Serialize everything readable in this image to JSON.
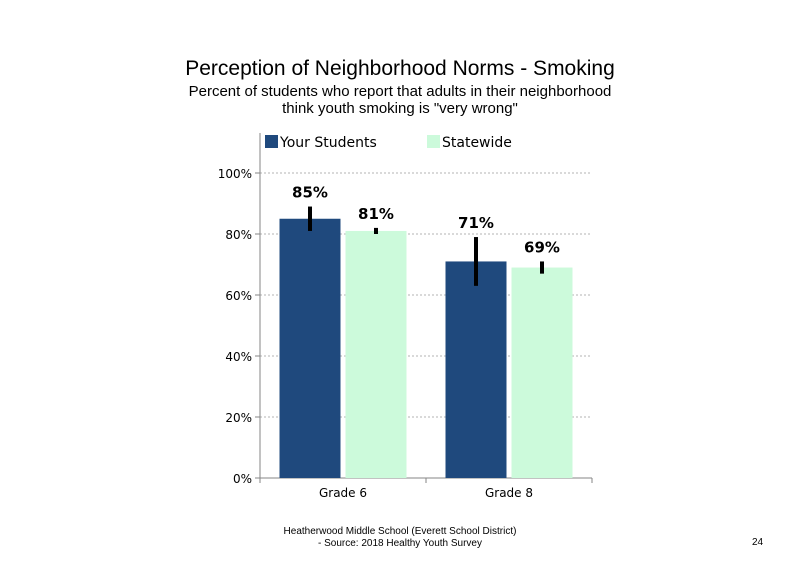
{
  "chart_data": {
    "type": "bar",
    "title": "Perception of Neighborhood Norms - Smoking",
    "subtitle_lines": [
      "Percent of students who report that adults in their neighborhood",
      "think youth smoking is \"very wrong\""
    ],
    "categories": [
      "Grade 6",
      "Grade 8"
    ],
    "series": [
      {
        "name": "Your Students",
        "values": [
          85,
          71
        ],
        "labels": [
          "85%",
          "71%"
        ],
        "error_low": [
          81,
          63
        ],
        "error_high": [
          89,
          79
        ],
        "color": "#1f497d"
      },
      {
        "name": "Statewide",
        "values": [
          81,
          69
        ],
        "labels": [
          "81%",
          "69%"
        ],
        "error_low": [
          80,
          67
        ],
        "error_high": [
          82,
          71
        ],
        "color": "#ccfadb"
      }
    ],
    "yticks": [
      0,
      20,
      40,
      60,
      80,
      100
    ],
    "ytick_labels": [
      "0%",
      "20%",
      "40%",
      "60%",
      "80%",
      "100%"
    ],
    "ylim": [
      0,
      100
    ],
    "xlabel": "",
    "ylabel": "",
    "gridlines": "dashed",
    "legend_position": "top"
  },
  "footer": {
    "line1": "Heatherwood Middle School (Everett School District)",
    "line2": "- Source: 2018 Healthy Youth Survey"
  },
  "page_number": "24"
}
